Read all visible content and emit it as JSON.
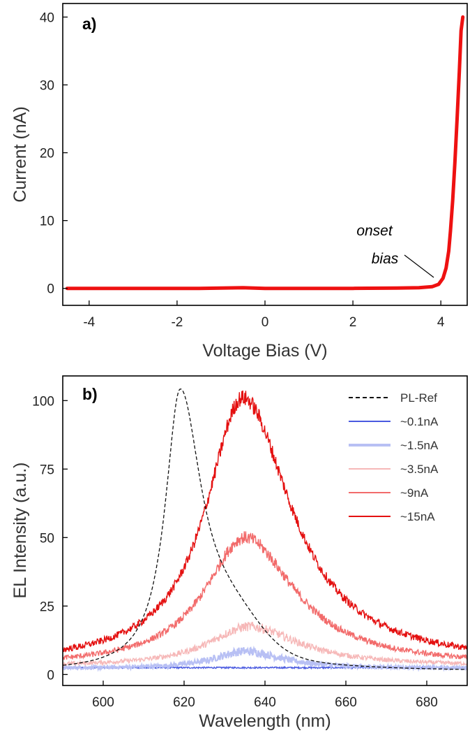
{
  "chart_data": [
    {
      "type": "line",
      "panel_label": "a)",
      "xlabel": "Voltage Bias (V)",
      "ylabel": "Current (nA)",
      "xlim": [
        -4.6,
        4.6
      ],
      "ylim": [
        -2.5,
        42
      ],
      "xticks": [
        -4,
        -2,
        0,
        2,
        4
      ],
      "xtick_labels": [
        "-4",
        "-2",
        "0",
        "2",
        "4"
      ],
      "yticks": [
        0,
        10,
        20,
        30,
        40
      ],
      "ytick_labels": [
        "0",
        "10",
        "20",
        "30",
        "40"
      ],
      "grid": false,
      "annotation": {
        "line1": "onset",
        "line2": "bias",
        "x": 4.0,
        "y": 0.4
      },
      "series": [
        {
          "color": "#ee1111",
          "x": [
            -4.5,
            -3.0,
            -1.5,
            -0.5,
            0.0,
            1.0,
            2.0,
            3.0,
            3.5,
            3.8,
            3.95,
            4.05,
            4.12,
            4.18,
            4.22,
            4.27,
            4.32,
            4.37,
            4.42,
            4.46,
            4.5
          ],
          "y": [
            0.0,
            0.0,
            0.0,
            0.1,
            0.0,
            0.0,
            0.0,
            0.05,
            0.1,
            0.25,
            0.6,
            1.5,
            3.0,
            5.5,
            8.5,
            13.0,
            18.5,
            25.0,
            32.0,
            38.0,
            40.0
          ]
        }
      ]
    },
    {
      "type": "line",
      "panel_label": "b)",
      "xlabel": "Wavelength (nm)",
      "ylabel": "EL Intensity (a.u.)",
      "xlim": [
        590,
        690
      ],
      "ylim": [
        -4,
        109
      ],
      "xticks": [
        600,
        620,
        640,
        660,
        680
      ],
      "xtick_labels": [
        "600",
        "620",
        "640",
        "660",
        "680"
      ],
      "yticks": [
        0,
        25,
        50,
        75,
        100
      ],
      "ytick_labels": [
        "0",
        "25",
        "50",
        "75",
        "100"
      ],
      "grid": false,
      "legend_position": "top-right",
      "series": [
        {
          "name": "PL-Ref",
          "color": "#111111",
          "dashed": true,
          "peak_x": 619,
          "peak_y": 102,
          "baseline": 1.0,
          "width_left": 4.5,
          "width_right": 6.5,
          "tail_amp": 12,
          "tail_center": 632,
          "tail_width": 10
        },
        {
          "name": "~0.1nA",
          "color": "#4a5ae0",
          "dashed": false,
          "peak_x": 635,
          "peak_y": 2.5,
          "baseline": 2.5,
          "width_left": 16,
          "width_right": 20,
          "noise": 0.8
        },
        {
          "name": "~1.5nA",
          "color": "#b8c0f4",
          "dashed": false,
          "peak_x": 635,
          "peak_y": 8.5,
          "baseline": 2.2,
          "width_left": 9,
          "width_right": 11,
          "noise": 1.6
        },
        {
          "name": "~3.5nA",
          "color": "#f6b8b8",
          "dashed": false,
          "peak_x": 636,
          "peak_y": 17.5,
          "baseline": 3.0,
          "width_left": 12,
          "width_right": 15,
          "noise": 1.8
        },
        {
          "name": "~9nA",
          "color": "#f26b6b",
          "dashed": false,
          "peak_x": 635,
          "peak_y": 50,
          "baseline": 3.0,
          "width_left": 12,
          "width_right": 15,
          "noise": 2.4
        },
        {
          "name": "~15nA",
          "color": "#e41010",
          "dashed": false,
          "peak_x": 634.5,
          "peak_y": 101,
          "baseline": 3.5,
          "width_left": 11,
          "width_right": 14.5,
          "noise": 3.0
        }
      ]
    }
  ]
}
